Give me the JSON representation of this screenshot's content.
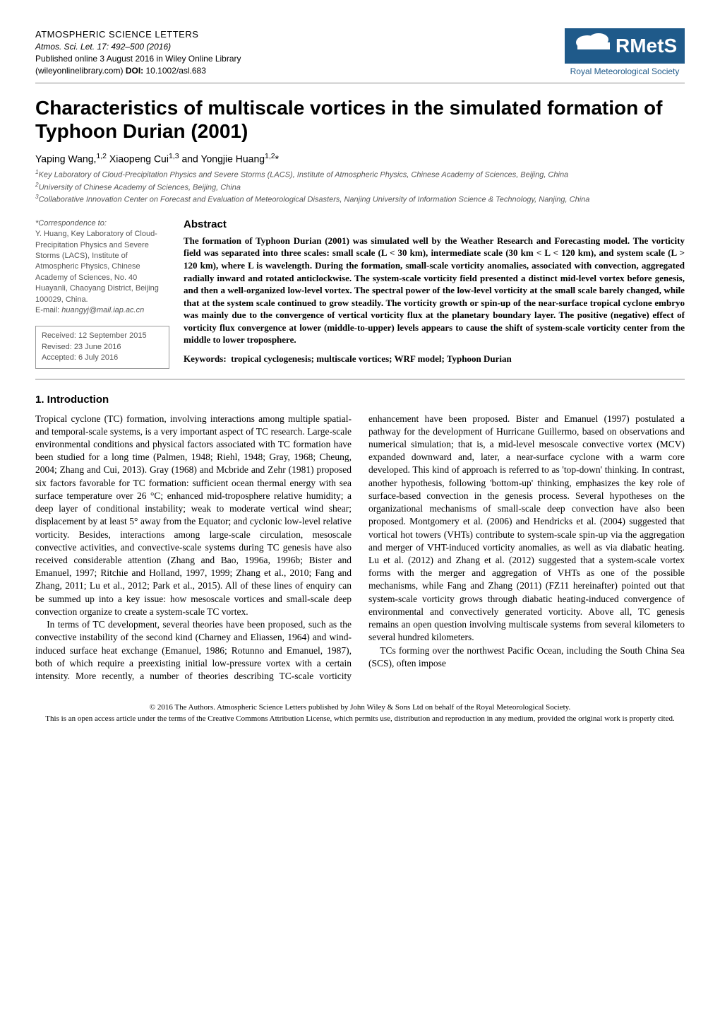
{
  "header": {
    "journal_name": "ATMOSPHERIC SCIENCE LETTERS",
    "citation_line": "Atmos. Sci. Let. 17: 492–500 (2016)",
    "pub_line": "Published online 3 August 2016 in Wiley Online Library",
    "doi_line_prefix": "(wileyonlinelibrary.com) ",
    "doi_label": "DOI:",
    "doi_value": " 10.1002/asl.683",
    "logo": {
      "text": "RMetS",
      "subtext": "Royal Meteorological Society",
      "bg_color": "#1f5a8a",
      "cloud_color": "#ffffff",
      "text_color": "#ffffff",
      "sub_color": "#1f5a8a"
    }
  },
  "title": "Characteristics of multiscale vortices in the simulated formation of Typhoon Durian (2001)",
  "authors_html": "Yaping Wang,<sup>1,2</sup> Xiaopeng Cui<sup>1,3</sup> and Yongjie Huang<sup>1,2</sup>*",
  "affiliations": [
    "1Key Laboratory of Cloud-Precipitation Physics and Severe Storms (LACS), Institute of Atmospheric Physics, Chinese Academy of Sciences, Beijing, China",
    "2University of Chinese Academy of Sciences, Beijing, China",
    "3Collaborative Innovation Center on Forecast and Evaluation of Meteorological Disasters, Nanjing University of Information Science & Technology, Nanjing, China"
  ],
  "correspondence": {
    "label": "*Correspondence to:",
    "body": "Y. Huang, Key Laboratory of Cloud-Precipitation Physics and Severe Storms (LACS), Institute of Atmospheric Physics, Chinese Academy of Sciences, No. 40 Huayanli, Chaoyang District, Beijing 100029, China.",
    "email_label": "E-mail: ",
    "email": "huangyj@mail.iap.ac.cn"
  },
  "dates": {
    "received": "Received: 12 September 2015",
    "revised": "Revised: 23 June 2016",
    "accepted": "Accepted: 6 July 2016"
  },
  "abstract": {
    "heading": "Abstract",
    "text": "The formation of Typhoon Durian (2001) was simulated well by the Weather Research and Forecasting model. The vorticity field was separated into three scales: small scale (L < 30 km), intermediate scale (30 km < L < 120 km), and system scale (L > 120 km), where L is wavelength. During the formation, small-scale vorticity anomalies, associated with convection, aggregated radially inward and rotated anticlockwise. The system-scale vorticity field presented a distinct mid-level vortex before genesis, and then a well-organized low-level vortex. The spectral power of the low-level vorticity at the small scale barely changed, while that at the system scale continued to grow steadily. The vorticity growth or spin-up of the near-surface tropical cyclone embryo was mainly due to the convergence of vertical vorticity flux at the planetary boundary layer. The positive (negative) effect of vorticity flux convergence at lower (middle-to-upper) levels appears to cause the shift of system-scale vorticity center from the middle to lower troposphere."
  },
  "keywords": {
    "label": "Keywords:",
    "text": "tropical cyclogenesis; multiscale vortices; WRF model; Typhoon Durian"
  },
  "section1": {
    "heading": "1. Introduction",
    "p1": "Tropical cyclone (TC) formation, involving interactions among multiple spatial- and temporal-scale systems, is a very important aspect of TC research. Large-scale environmental conditions and physical factors associated with TC formation have been studied for a long time (Palmen, 1948; Riehl, 1948; Gray, 1968; Cheung, 2004; Zhang and Cui, 2013). Gray (1968) and Mcbride and Zehr (1981) proposed six factors favorable for TC formation: sufficient ocean thermal energy with sea surface temperature over 26 °C; enhanced mid-troposphere relative humidity; a deep layer of conditional instability; weak to moderate vertical wind shear; displacement by at least 5° away from the Equator; and cyclonic low-level relative vorticity. Besides, interactions among large-scale circulation, mesoscale convective activities, and convective-scale systems during TC genesis have also received considerable attention (Zhang and Bao, 1996a, 1996b; Bister and Emanuel, 1997; Ritchie and Holland, 1997, 1999; Zhang et al., 2010; Fang and Zhang, 2011; Lu et al., 2012; Park et al., 2015). All of these lines of enquiry can be summed up into a key issue: how mesoscale vortices and small-scale deep convection organize to create a system-scale TC vortex.",
    "p2": "In terms of TC development, several theories have been proposed, such as the convective instability of the second kind (Charney and Eliassen, 1964) and wind-induced surface heat exchange (Emanuel, 1986; Rotunno and Emanuel, 1987), both of which require a preexisting initial low-pressure vortex with a certain intensity. More recently, a number of theories describing TC-scale vorticity enhancement have been proposed. Bister and Emanuel (1997) postulated a pathway for the development of Hurricane Guillermo, based on observations and numerical simulation; that is, a mid-level mesoscale convective vortex (MCV) expanded downward and, later, a near-surface cyclone with a warm core developed. This kind of approach is referred to as 'top-down' thinking. In contrast, another hypothesis, following 'bottom-up' thinking, emphasizes the key role of surface-based convection in the genesis process. Several hypotheses on the organizational mechanisms of small-scale deep convection have also been proposed. Montgomery et al. (2006) and Hendricks et al. (2004) suggested that vortical hot towers (VHTs) contribute to system-scale spin-up via the aggregation and merger of VHT-induced vorticity anomalies, as well as via diabatic heating. Lu et al. (2012) and Zhang et al. (2012) suggested that a system-scale vortex forms with the merger and aggregation of VHTs as one of the possible mechanisms, while Fang and Zhang (2011) (FZ11 hereinafter) pointed out that system-scale vorticity grows through diabatic heating-induced convergence of environmental and convectively generated vorticity. Above all, TC genesis remains an open question involving multiscale systems from several kilometers to several hundred kilometers.",
    "p3": "TCs forming over the northwest Pacific Ocean, including the South China Sea (SCS), often impose"
  },
  "footer": {
    "line1": "© 2016 The Authors. Atmospheric Science Letters published by John Wiley & Sons Ltd on behalf of the Royal Meteorological Society.",
    "line2": "This is an open access article under the terms of the Creative Commons Attribution License, which permits use, distribution and reproduction in any medium, provided the original work is properly cited."
  }
}
